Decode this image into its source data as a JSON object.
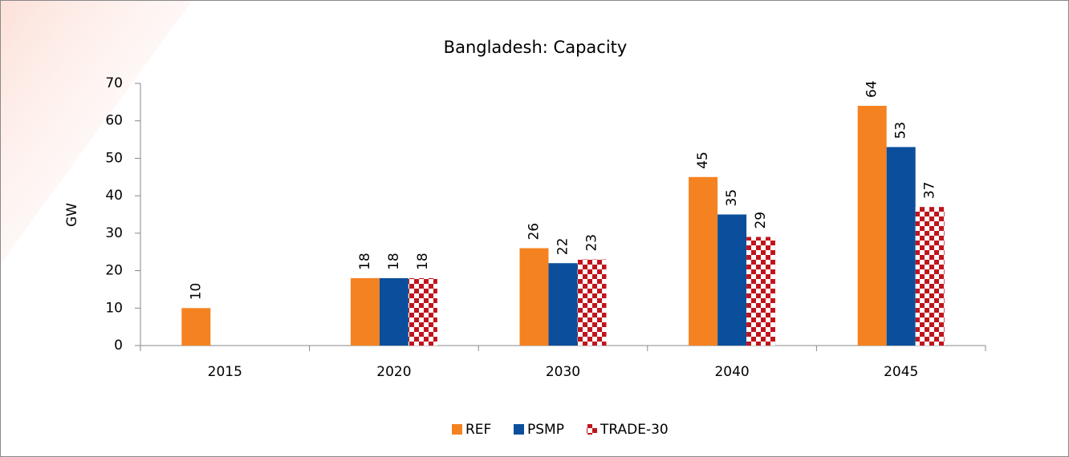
{
  "chart_data": {
    "type": "bar",
    "title": "Bangladesh: Capacity",
    "y_label": "GW",
    "categories": [
      "2015",
      "2020",
      "2030",
      "2040",
      "2045"
    ],
    "series": [
      {
        "name": "REF",
        "color": "#f58220",
        "values": [
          10,
          18,
          26,
          45,
          64
        ]
      },
      {
        "name": "PSMP",
        "color": "#0b4f9c",
        "values": [
          null,
          18,
          22,
          35,
          53
        ]
      },
      {
        "name": "TRADE-30",
        "color": "#c0141c",
        "pattern": "checkerboard",
        "values": [
          null,
          18,
          23,
          29,
          37
        ]
      }
    ],
    "ylim": [
      0,
      70
    ],
    "yticks": [
      0,
      10,
      20,
      30,
      40,
      50,
      60,
      70
    ],
    "grid": false,
    "legend": "bottom"
  }
}
